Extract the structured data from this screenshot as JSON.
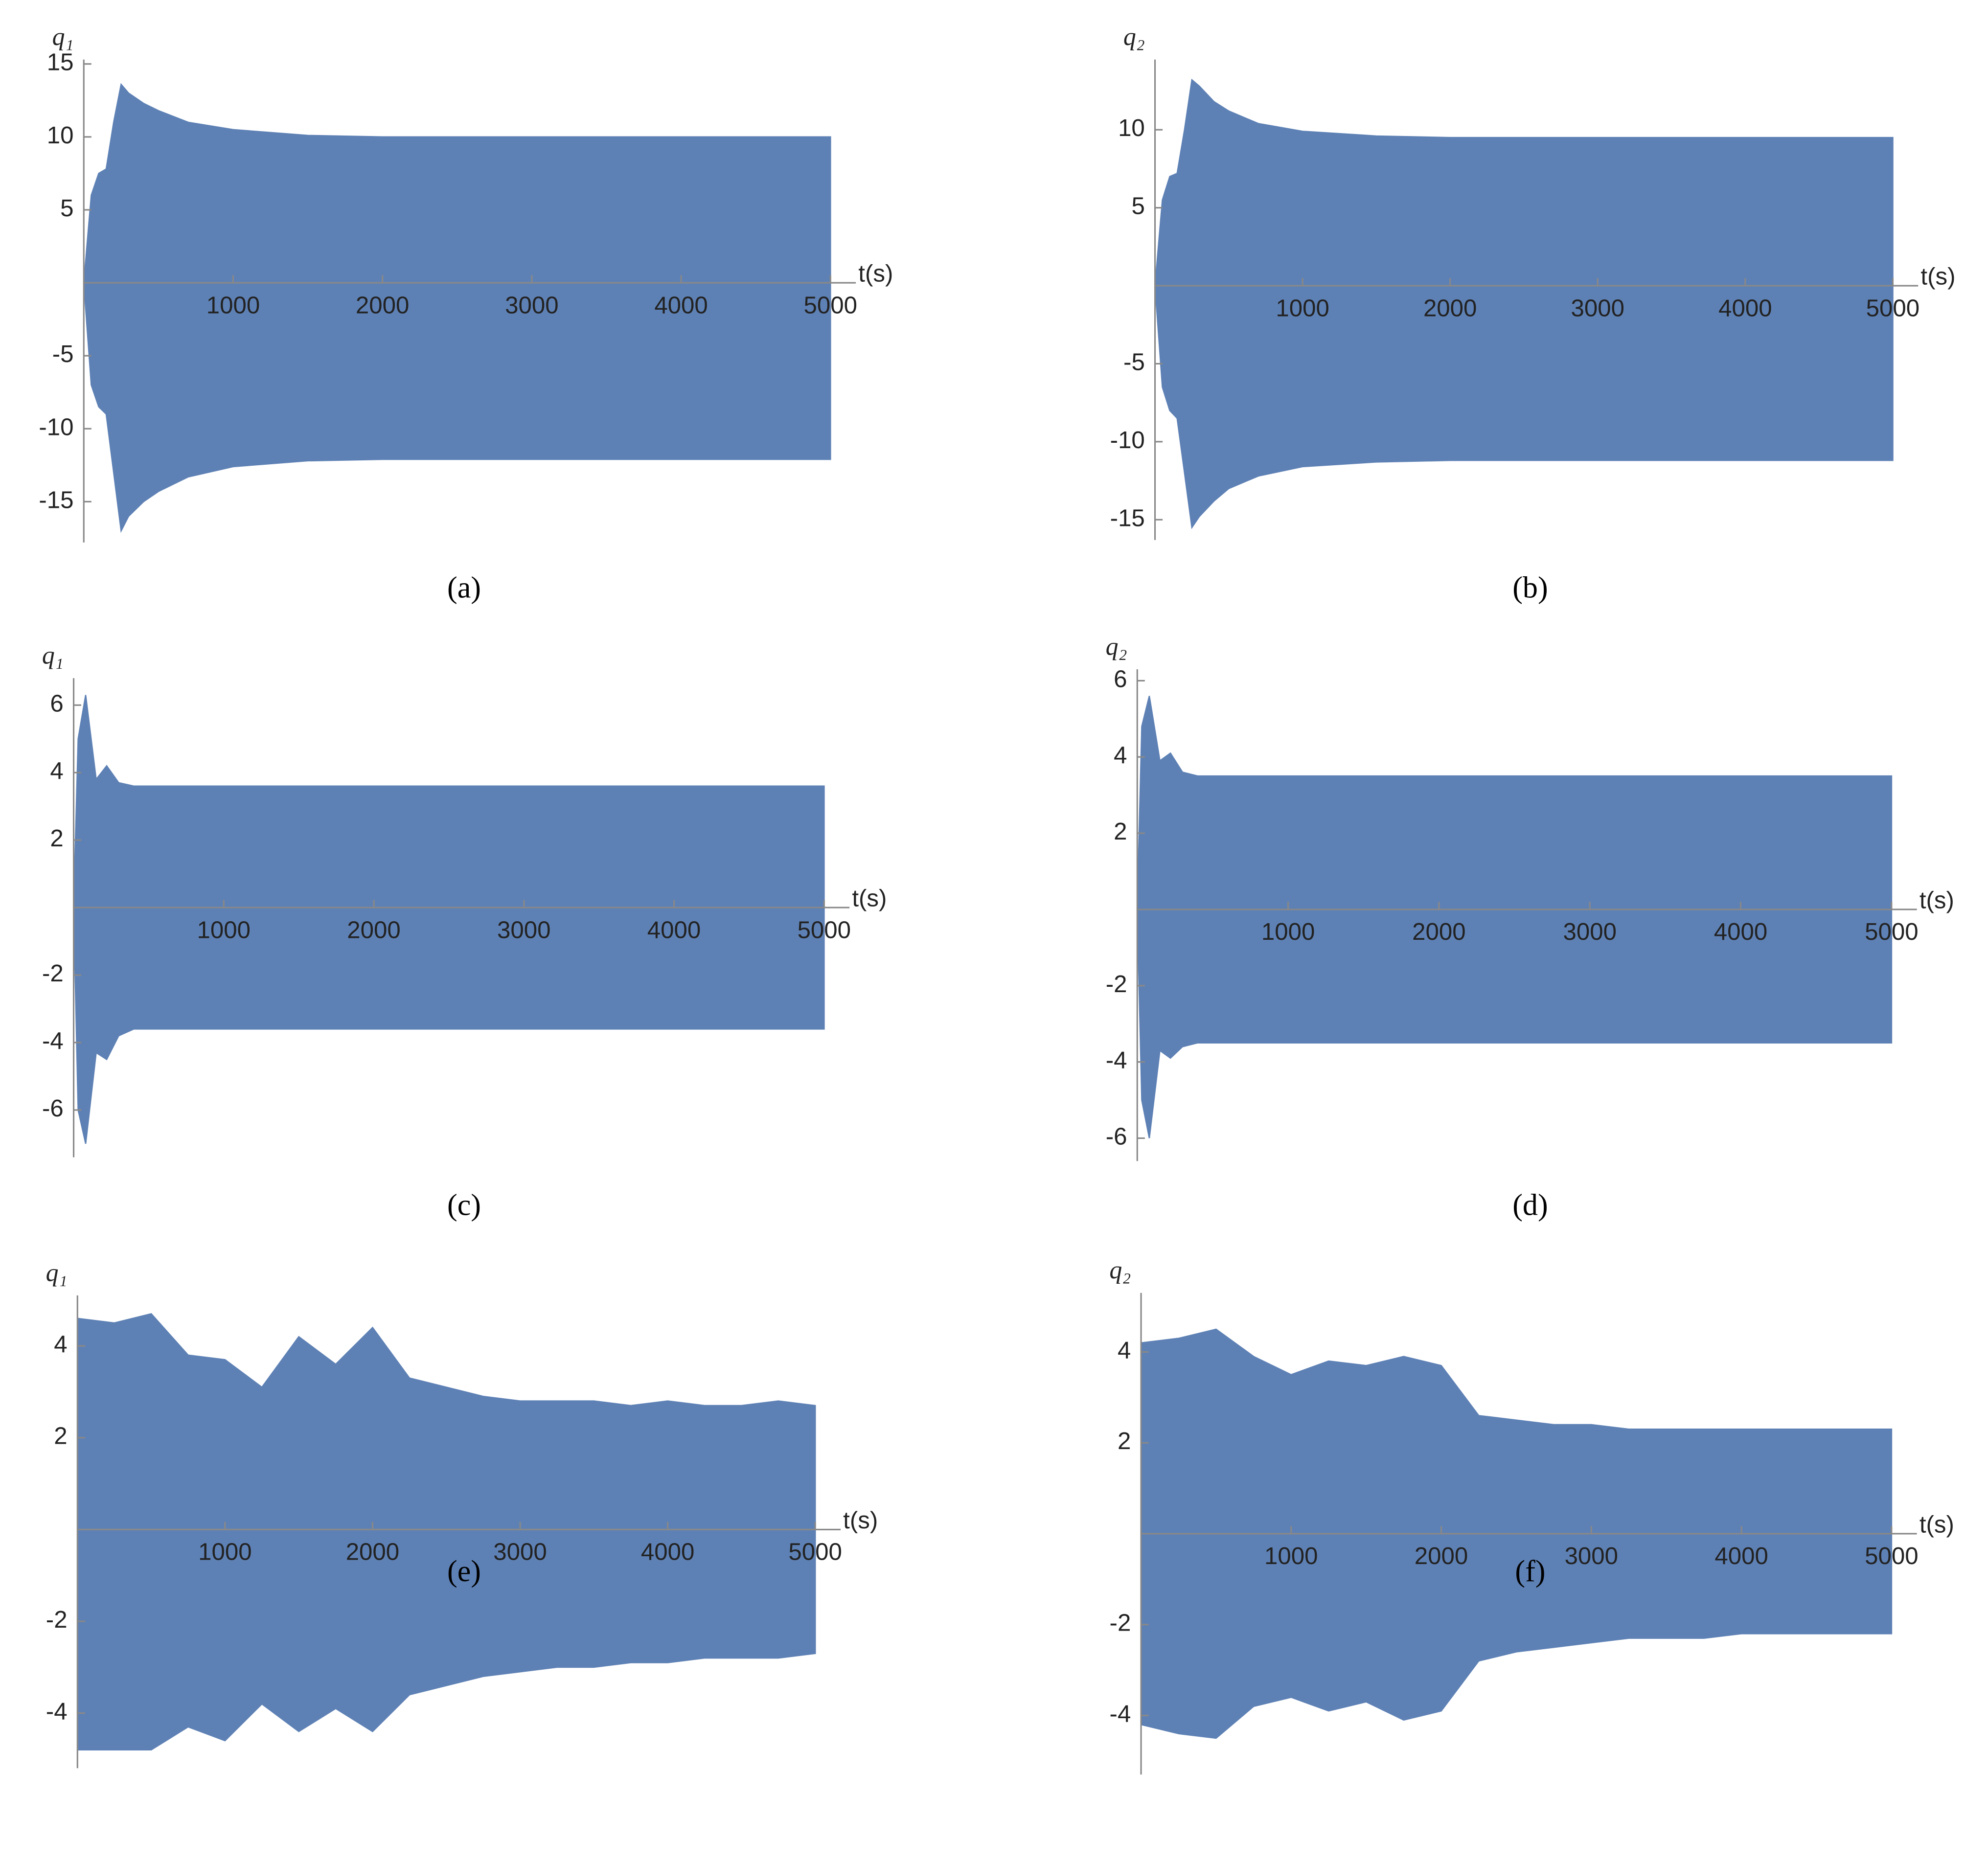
{
  "chart_data": [
    {
      "type": "area",
      "caption": "(a)",
      "xlabel": "t(s)",
      "ylabel": "q₁",
      "xlim": [
        0,
        5000
      ],
      "ylim": [
        -17.8,
        15.3
      ],
      "xticks": [
        1000,
        2000,
        3000,
        4000,
        5000
      ],
      "yticks": [
        -15,
        -10,
        -5,
        5,
        10,
        15
      ],
      "x": [
        0,
        50,
        100,
        150,
        200,
        250,
        300,
        400,
        500,
        700,
        1000,
        1500,
        2000,
        5000
      ],
      "series": [
        {
          "color": "#5e81b5",
          "values": [
            0,
            6,
            7.5,
            7.8,
            11,
            13.6,
            13,
            12.3,
            11.8,
            11,
            10.5,
            10.1,
            10,
            10
          ]
        },
        {
          "color": "#5e81b5",
          "values": [
            0,
            -7,
            -8.5,
            -9,
            -13,
            -17,
            -16,
            -15,
            -14.3,
            -13.3,
            -12.6,
            -12.2,
            -12.1,
            -12.1
          ]
        }
      ]
    },
    {
      "type": "area",
      "caption": "(b)",
      "xlabel": "t(s)",
      "ylabel": "q₂",
      "xlim": [
        0,
        5000
      ],
      "ylim": [
        -16.3,
        14.5
      ],
      "xticks": [
        1000,
        2000,
        3000,
        4000,
        5000
      ],
      "yticks": [
        -15,
        -10,
        -5,
        5,
        10
      ],
      "x": [
        0,
        50,
        100,
        150,
        200,
        250,
        300,
        400,
        500,
        700,
        1000,
        1500,
        2000,
        5000
      ],
      "series": [
        {
          "color": "#5e81b5",
          "values": [
            0,
            5.5,
            7,
            7.2,
            10,
            13.2,
            12.8,
            11.8,
            11.2,
            10.4,
            9.9,
            9.6,
            9.5,
            9.5
          ]
        },
        {
          "color": "#5e81b5",
          "values": [
            0,
            -6.5,
            -8,
            -8.5,
            -12,
            -15.5,
            -14.8,
            -13.8,
            -13,
            -12.2,
            -11.6,
            -11.3,
            -11.2,
            -11.2
          ]
        }
      ]
    },
    {
      "type": "area",
      "caption": "(c)",
      "xlabel": "t(s)",
      "ylabel": "q₁",
      "xlim": [
        0,
        5000
      ],
      "ylim": [
        -7.4,
        6.8
      ],
      "xticks": [
        1000,
        2000,
        3000,
        4000,
        5000
      ],
      "yticks": [
        -6,
        -4,
        -2,
        2,
        4,
        6
      ],
      "x": [
        0,
        30,
        80,
        150,
        220,
        300,
        400,
        5000
      ],
      "series": [
        {
          "color": "#5e81b5",
          "values": [
            0,
            5,
            6.3,
            3.8,
            4.2,
            3.7,
            3.6,
            3.6
          ]
        },
        {
          "color": "#5e81b5",
          "values": [
            0,
            -6,
            -7,
            -4.3,
            -4.5,
            -3.8,
            -3.6,
            -3.6
          ]
        }
      ]
    },
    {
      "type": "area",
      "caption": "(d)",
      "xlabel": "t(s)",
      "ylabel": "q₂",
      "xlim": [
        0,
        5000
      ],
      "ylim": [
        -6.6,
        6.3
      ],
      "xticks": [
        1000,
        2000,
        3000,
        4000,
        5000
      ],
      "yticks": [
        -6,
        -4,
        -2,
        2,
        4,
        6
      ],
      "x": [
        0,
        30,
        80,
        150,
        220,
        300,
        400,
        5000
      ],
      "series": [
        {
          "color": "#5e81b5",
          "values": [
            0,
            4.8,
            5.6,
            3.9,
            4.1,
            3.6,
            3.5,
            3.5
          ]
        },
        {
          "color": "#5e81b5",
          "values": [
            0,
            -5,
            -6,
            -3.7,
            -3.9,
            -3.6,
            -3.5,
            -3.5
          ]
        }
      ]
    },
    {
      "type": "area",
      "caption": "(e)",
      "xlabel": "t(s)",
      "ylabel": "q₁",
      "xlim": [
        0,
        5000
      ],
      "ylim": [
        -5.2,
        5.1
      ],
      "xticks": [
        1000,
        2000,
        3000,
        4000,
        5000
      ],
      "yticks": [
        -4,
        -2,
        2,
        4
      ],
      "x": [
        0,
        250,
        500,
        750,
        1000,
        1250,
        1500,
        1750,
        2000,
        2250,
        2500,
        2750,
        3000,
        3250,
        3500,
        3750,
        4000,
        4250,
        4500,
        4750,
        5000
      ],
      "series": [
        {
          "color": "#5e81b5",
          "values": [
            4.6,
            4.5,
            4.7,
            3.8,
            3.7,
            3.1,
            4.2,
            3.6,
            4.4,
            3.3,
            3.1,
            2.9,
            2.8,
            2.8,
            2.8,
            2.7,
            2.8,
            2.7,
            2.7,
            2.8,
            2.7
          ]
        },
        {
          "color": "#5e81b5",
          "values": [
            -4.8,
            -4.8,
            -4.8,
            -4.3,
            -4.6,
            -3.8,
            -4.4,
            -3.9,
            -4.4,
            -3.6,
            -3.4,
            -3.2,
            -3.1,
            -3,
            -3,
            -2.9,
            -2.9,
            -2.8,
            -2.8,
            -2.8,
            -2.7
          ]
        }
      ]
    },
    {
      "type": "area",
      "caption": "(f)",
      "xlabel": "t(s)",
      "ylabel": "q₂",
      "xlim": [
        0,
        5000
      ],
      "ylim": [
        -5.3,
        5.3
      ],
      "xticks": [
        1000,
        2000,
        3000,
        4000,
        5000
      ],
      "yticks": [
        -4,
        -2,
        2,
        4
      ],
      "x": [
        0,
        250,
        500,
        750,
        1000,
        1250,
        1500,
        1750,
        2000,
        2250,
        2500,
        2750,
        3000,
        3250,
        3500,
        3750,
        4000,
        4250,
        4500,
        4750,
        5000
      ],
      "series": [
        {
          "color": "#5e81b5",
          "values": [
            4.2,
            4.3,
            4.5,
            3.9,
            3.5,
            3.8,
            3.7,
            3.9,
            3.7,
            2.6,
            2.5,
            2.4,
            2.4,
            2.3,
            2.3,
            2.3,
            2.3,
            2.3,
            2.3,
            2.3,
            2.3
          ]
        },
        {
          "color": "#5e81b5",
          "values": [
            -4.2,
            -4.4,
            -4.5,
            -3.8,
            -3.6,
            -3.9,
            -3.7,
            -4.1,
            -3.9,
            -2.8,
            -2.6,
            -2.5,
            -2.4,
            -2.3,
            -2.3,
            -2.3,
            -2.2,
            -2.2,
            -2.2,
            -2.2,
            -2.2
          ]
        }
      ]
    }
  ]
}
